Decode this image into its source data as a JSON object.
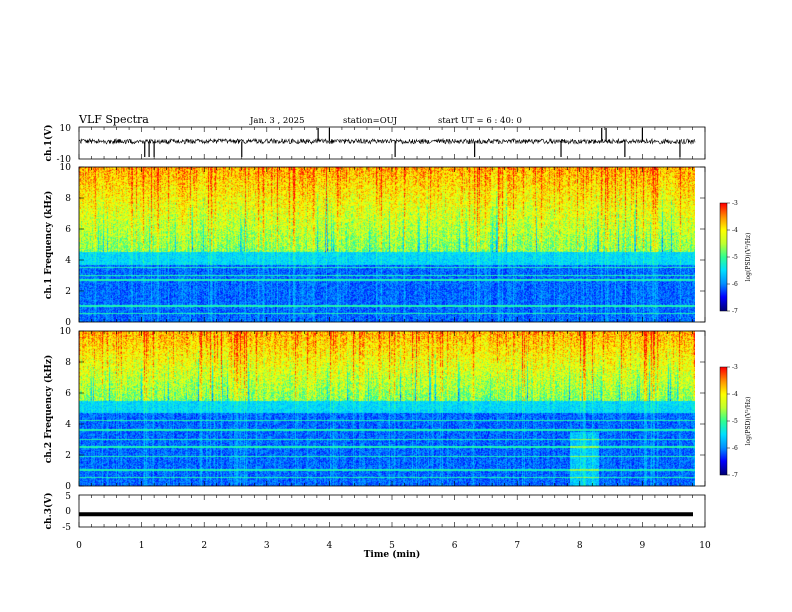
{
  "header": {
    "title": "VLF Spectra",
    "date": "Jan. 3 , 2025",
    "station": "station=OUJ",
    "start": "start UT = 6 : 40: 0"
  },
  "colors": {
    "background": "#ffffff",
    "trace": "#000000",
    "colormap": [
      "#00007a",
      "#0000ff",
      "#0090ff",
      "#00e0ff",
      "#30ff90",
      "#c0ff30",
      "#ffff00",
      "#ff9000",
      "#ff0000",
      "#ffffff"
    ]
  },
  "chart_data": [
    {
      "type": "line",
      "name": "ch1-waveform",
      "ylabel": "ch.1(V)",
      "ylim": [
        -10,
        10
      ],
      "yticks": [
        "10",
        "-10"
      ],
      "xlim": [
        0,
        10
      ],
      "baseline": 0,
      "bursts_min": [
        1.05,
        1.12,
        1.2,
        2.6,
        3.82,
        4.0,
        5.05,
        6.32,
        7.7,
        8.35,
        8.42,
        8.72,
        9.0,
        9.6
      ],
      "grid": false
    },
    {
      "type": "heatmap",
      "name": "ch1-spectrogram",
      "ylabel": "ch.1 Frequency (kHz)",
      "ylim": [
        0,
        10
      ],
      "yticks": [
        "0",
        "2",
        "4",
        "6",
        "8",
        "10"
      ],
      "xlim": [
        0,
        10
      ],
      "data_end_min": 9.85,
      "noise_floor_khz": 4.5,
      "tone_lines_khz": [
        0.5,
        1.0,
        2.7,
        3.0,
        3.5
      ],
      "colorbar": {
        "label": "log(PSD)(V²/Hz)",
        "range": [
          -7,
          -3
        ],
        "ticks": [
          "-3",
          "-4",
          "-5",
          "-6",
          "-7"
        ]
      }
    },
    {
      "type": "heatmap",
      "name": "ch2-spectrogram",
      "ylabel": "ch.2 Frequency (kHz)",
      "ylim": [
        0,
        10
      ],
      "yticks": [
        "0",
        "2",
        "4",
        "6",
        "8",
        "10"
      ],
      "xlim": [
        0,
        10
      ],
      "data_end_min": 9.85,
      "noise_floor_khz": 5.5,
      "tone_lines_khz": [
        0.5,
        1.0,
        1.9,
        2.5,
        3.0,
        3.6,
        4.2
      ],
      "colorbar": {
        "label": "log(PSD)(V²/Hz)",
        "range": [
          -7,
          -3
        ],
        "ticks": [
          "-3",
          "-4",
          "-5",
          "-6",
          "-7"
        ]
      }
    },
    {
      "type": "line",
      "name": "ch3-waveform",
      "ylabel": "ch.3(V)",
      "ylim": [
        -5,
        5
      ],
      "yticks": [
        "5",
        "0",
        "-5"
      ],
      "xlim": [
        0,
        10
      ],
      "baseline": -1,
      "grid": false
    }
  ],
  "xaxis": {
    "label": "Time (min)",
    "ticks": [
      "0",
      "1",
      "2",
      "3",
      "4",
      "5",
      "6",
      "7",
      "8",
      "9",
      "10"
    ]
  }
}
